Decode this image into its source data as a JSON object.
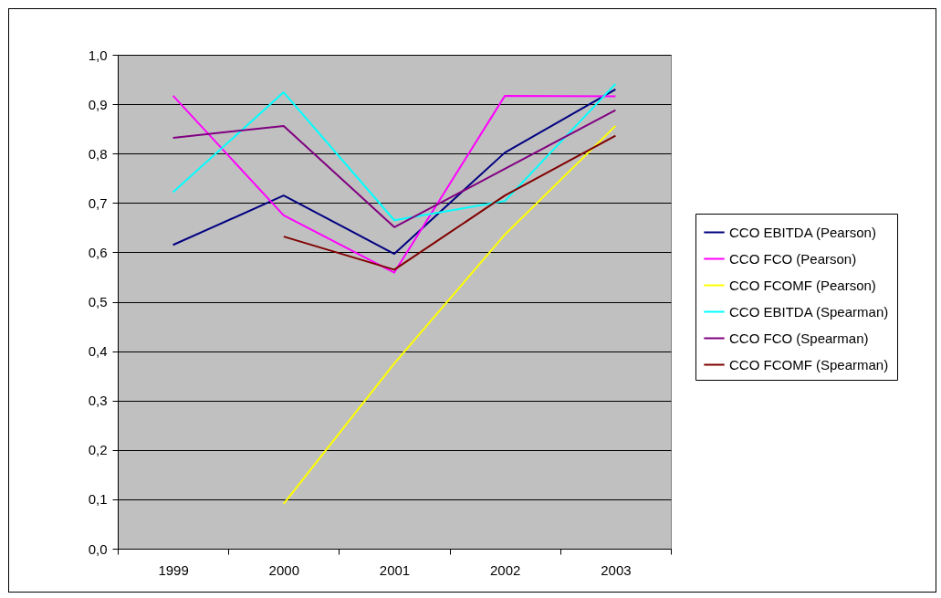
{
  "chart_data": {
    "type": "line",
    "categories": [
      "1999",
      "2000",
      "2001",
      "2002",
      "2003"
    ],
    "series": [
      {
        "name": "CCO EBITDA (Pearson)",
        "color": "#000080",
        "values": [
          0.615,
          0.715,
          0.597,
          0.802,
          0.93
        ]
      },
      {
        "name": "CCO FCO (Pearson)",
        "color": "#ff00ff",
        "values": [
          0.917,
          0.675,
          0.559,
          0.917,
          0.916
        ]
      },
      {
        "name": "CCO FCOMF (Pearson)",
        "color": "#ffff00",
        "values": [
          null,
          0.091,
          0.375,
          0.636,
          0.856
        ]
      },
      {
        "name": "CCO EBITDA (Spearman)",
        "color": "#00ffff",
        "values": [
          0.722,
          0.924,
          0.665,
          0.704,
          0.941
        ]
      },
      {
        "name": "CCO FCO (Spearman)",
        "color": "#800080",
        "values": [
          0.832,
          0.856,
          0.651,
          0.769,
          0.888
        ]
      },
      {
        "name": "CCO FCOMF (Spearman)",
        "color": "#800000",
        "values": [
          null,
          0.632,
          0.565,
          0.715,
          0.836
        ]
      }
    ],
    "ylim": [
      0,
      1
    ],
    "yticks": [
      {
        "value": 0,
        "label": "0,0"
      },
      {
        "value": 0.1,
        "label": "0,1"
      },
      {
        "value": 0.2,
        "label": "0,2"
      },
      {
        "value": 0.3,
        "label": "0,3"
      },
      {
        "value": 0.4,
        "label": "0,4"
      },
      {
        "value": 0.5,
        "label": "0,5"
      },
      {
        "value": 0.6,
        "label": "0,6"
      },
      {
        "value": 0.7,
        "label": "0,7"
      },
      {
        "value": 0.8,
        "label": "0,8"
      },
      {
        "value": 0.9,
        "label": "0,9"
      },
      {
        "value": 1,
        "label": "1,0"
      }
    ],
    "grid": "y",
    "legend": "right",
    "marker": "none",
    "line_style": "solid"
  }
}
